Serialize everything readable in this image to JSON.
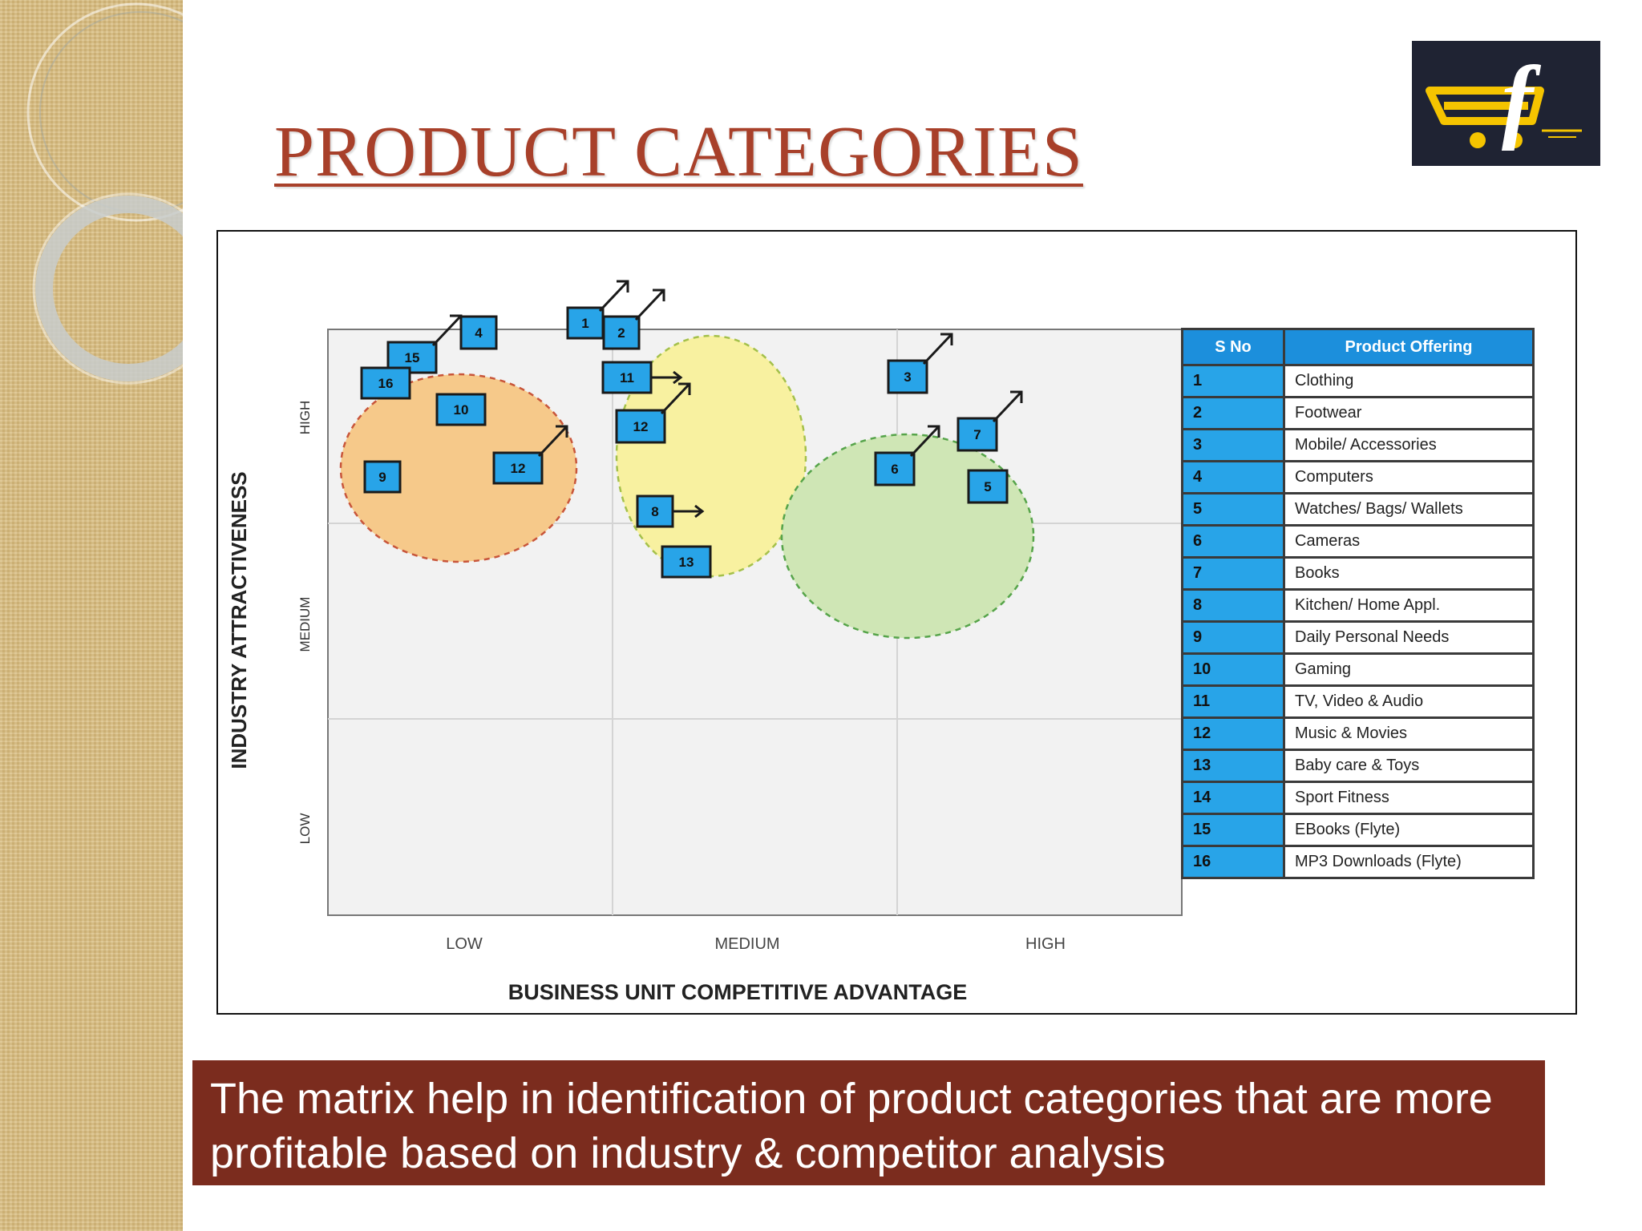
{
  "slide": {
    "title": "PRODUCT CATEGORIES",
    "caption": "The matrix help in identification of product categories that are more profitable based on industry & competitor analysis"
  },
  "logo": {
    "letter": "f",
    "icon": "shopping-cart-icon",
    "colors": {
      "background": "#1f2333",
      "cart": "#f5c400",
      "letter": "#ffffff"
    }
  },
  "colors": {
    "title": "#a8402a",
    "caption_bg": "#7b2c1e",
    "marker_fill": "#28a4e8",
    "table_header": "#1c8fdc",
    "cluster_orange": "#f6c98a",
    "cluster_yellow": "#f8f1a0",
    "cluster_green": "#cfe6b5"
  },
  "matrix": {
    "y_axis_title": "INDUSTRY ATTRACTIVENESS",
    "x_axis_title": "BUSINESS UNIT COMPETITIVE ADVANTAGE",
    "y_levels": [
      "HIGH",
      "MEDIUM",
      "LOW"
    ],
    "x_levels": [
      "LOW",
      "MEDIUM",
      "HIGH"
    ],
    "clusters": [
      {
        "name": "orange",
        "color": "#f6c98a"
      },
      {
        "name": "yellow",
        "color": "#f8f1a0"
      },
      {
        "name": "green",
        "color": "#cfe6b5"
      }
    ],
    "markers": [
      {
        "label": "4",
        "arrow": "none"
      },
      {
        "label": "15",
        "arrow": "up-right"
      },
      {
        "label": "16",
        "arrow": "none"
      },
      {
        "label": "10",
        "arrow": "none"
      },
      {
        "label": "1",
        "arrow": "up-right"
      },
      {
        "label": "2",
        "arrow": "up-right"
      },
      {
        "label": "11",
        "arrow": "right"
      },
      {
        "label": "12",
        "arrow": "up-right"
      },
      {
        "label": "3",
        "arrow": "up-right"
      },
      {
        "label": "7",
        "arrow": "up-right"
      },
      {
        "label": "6",
        "arrow": "up-right"
      },
      {
        "label": "5",
        "arrow": "none"
      },
      {
        "label": "9",
        "arrow": "none"
      },
      {
        "label": "12",
        "arrow": "up-right"
      },
      {
        "label": "8",
        "arrow": "right"
      },
      {
        "label": "13",
        "arrow": "none"
      }
    ],
    "table": {
      "headers": [
        "S No",
        "Product Offering"
      ],
      "rows": [
        {
          "sno": "1",
          "name": "Clothing"
        },
        {
          "sno": "2",
          "name": "Footwear"
        },
        {
          "sno": "3",
          "name": "Mobile/ Accessories"
        },
        {
          "sno": "4",
          "name": "Computers"
        },
        {
          "sno": "5",
          "name": "Watches/ Bags/ Wallets"
        },
        {
          "sno": "6",
          "name": "Cameras"
        },
        {
          "sno": "7",
          "name": "Books"
        },
        {
          "sno": "8",
          "name": "Kitchen/ Home Appl."
        },
        {
          "sno": "9",
          "name": "Daily Personal Needs"
        },
        {
          "sno": "10",
          "name": "Gaming"
        },
        {
          "sno": "11",
          "name": "TV, Video & Audio"
        },
        {
          "sno": "12",
          "name": "Music & Movies"
        },
        {
          "sno": "13",
          "name": "Baby care & Toys"
        },
        {
          "sno": "14",
          "name": "Sport Fitness"
        },
        {
          "sno": "15",
          "name": "EBooks (Flyte)"
        },
        {
          "sno": "16",
          "name": "MP3 Downloads (Flyte)"
        }
      ]
    }
  }
}
